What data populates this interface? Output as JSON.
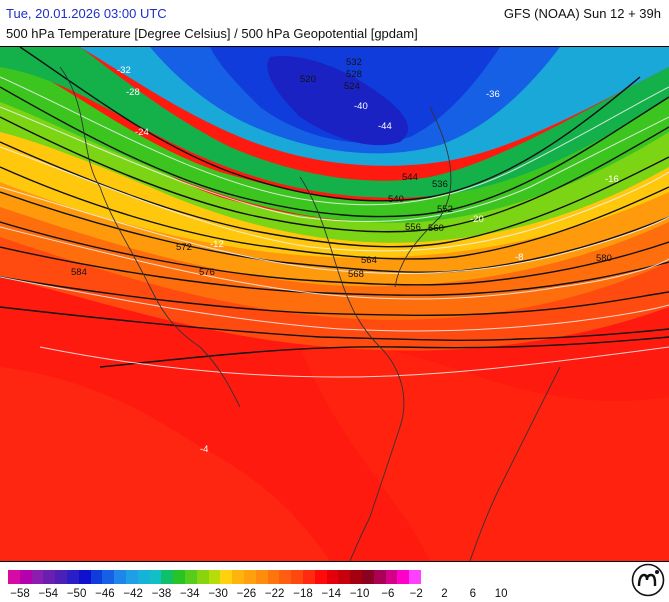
{
  "header": {
    "datetime": "Tue, 20.01.2026 03:00 UTC",
    "model_run": "GFS (NOAA) Sun 12 + 39h",
    "subtitle": "500 hPa Temperature [Degree Celsius] / 500 hPa Geopotential [gpdam]"
  },
  "map": {
    "geopotential_labels": [
      "532",
      "528",
      "524",
      "520",
      "540",
      "544",
      "536",
      "552",
      "556",
      "560",
      "564",
      "568",
      "572",
      "576",
      "580",
      "584"
    ],
    "temperature_labels": [
      "-32",
      "-36",
      "-40",
      "-44",
      "-28",
      "-24",
      "-20",
      "-16",
      "-12",
      "-8",
      "-4"
    ]
  },
  "legend": {
    "ticks": [
      "-58",
      "-54",
      "-50",
      "-46",
      "-42",
      "-38",
      "-34",
      "-30",
      "-26",
      "-22",
      "-18",
      "-14",
      "-10",
      "-6",
      "-2",
      "2",
      "6",
      "10"
    ],
    "colors": [
      "#d70aa6",
      "#b500ae",
      "#8d1dae",
      "#6a1fb1",
      "#4d1fb7",
      "#2a1ec6",
      "#1010cf",
      "#103cdc",
      "#1560e4",
      "#1e86ea",
      "#1f9fe5",
      "#17b3d6",
      "#10c0c6",
      "#0ec06a",
      "#27c327",
      "#56cc1c",
      "#8ad40f",
      "#b6dc0a",
      "#ffd20d",
      "#ffb40d",
      "#ffa00d",
      "#ff8c0d",
      "#ff750d",
      "#ff5e10",
      "#ff4810",
      "#ff2a10",
      "#ff0a0a",
      "#e4000a",
      "#c7000c",
      "#a4000e",
      "#8c0020",
      "#aa0055",
      "#d40087",
      "#ff00c8",
      "#ff40ff"
    ],
    "logo": "mi-icon"
  }
}
